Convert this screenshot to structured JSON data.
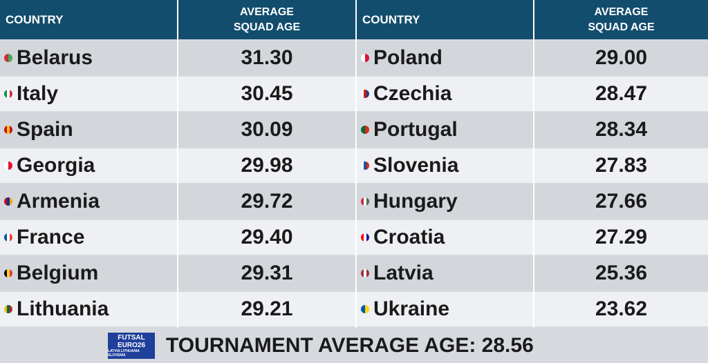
{
  "header": {
    "col_country": "COUNTRY",
    "col_age_line1": "AVERAGE",
    "col_age_line2": "SQUAD AGE"
  },
  "left_rows": [
    {
      "country": "Belarus",
      "age": "31.30",
      "flag": [
        "#c8313e",
        "#4aa657"
      ]
    },
    {
      "country": "Italy",
      "age": "30.45",
      "flag": [
        "#009246",
        "#ffffff",
        "#ce2b37"
      ]
    },
    {
      "country": "Spain",
      "age": "30.09",
      "flag": [
        "#c60b1e",
        "#ffc400",
        "#c60b1e"
      ]
    },
    {
      "country": "Georgia",
      "age": "29.98",
      "flag": [
        "#ffffff",
        "#e8112d"
      ]
    },
    {
      "country": "Armenia",
      "age": "29.72",
      "flag": [
        "#d90012",
        "#0033a0",
        "#f2a800"
      ]
    },
    {
      "country": "France",
      "age": "29.40",
      "flag": [
        "#0055a4",
        "#ffffff",
        "#ef4135"
      ]
    },
    {
      "country": "Belgium",
      "age": "29.31",
      "flag": [
        "#000000",
        "#fdda24",
        "#ef3340"
      ]
    },
    {
      "country": "Lithuania",
      "age": "29.21",
      "flag": [
        "#fdb913",
        "#006a44",
        "#c1272d"
      ]
    }
  ],
  "right_rows": [
    {
      "country": "Poland",
      "age": "29.00",
      "flag": [
        "#ffffff",
        "#dc143c"
      ]
    },
    {
      "country": "Czechia",
      "age": "28.47",
      "flag": [
        "#ffffff",
        "#d7141a",
        "#11457e"
      ]
    },
    {
      "country": "Portugal",
      "age": "28.34",
      "flag": [
        "#046a38",
        "#da291c"
      ]
    },
    {
      "country": "Slovenia",
      "age": "27.83",
      "flag": [
        "#ffffff",
        "#005da4",
        "#ed1c24"
      ]
    },
    {
      "country": "Hungary",
      "age": "27.66",
      "flag": [
        "#ce2939",
        "#ffffff",
        "#477050"
      ]
    },
    {
      "country": "Croatia",
      "age": "27.29",
      "flag": [
        "#ff0000",
        "#ffffff",
        "#171796"
      ]
    },
    {
      "country": "Latvia",
      "age": "25.36",
      "flag": [
        "#9e3039",
        "#ffffff",
        "#9e3039"
      ]
    },
    {
      "country": "Ukraine",
      "age": "23.62",
      "flag": [
        "#0057b7",
        "#ffd700"
      ]
    }
  ],
  "footer": {
    "logo_line1": "FUTSAL",
    "logo_line2": "EURO26",
    "logo_line3": "LATVIA LITHUANIA SLOVENIA",
    "text": "TOURNAMENT AVERAGE AGE: 28.56"
  },
  "colors": {
    "header_bg": "#134d6e",
    "row_dark": "#d3d6db",
    "row_light": "#eef0f3",
    "logo_bg": "#1f3f9a"
  }
}
